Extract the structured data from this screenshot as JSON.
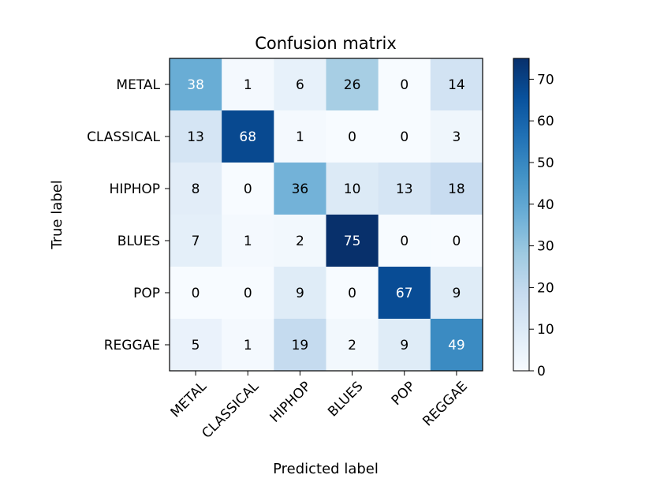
{
  "chart_data": {
    "type": "heatmap",
    "title": "Confusion matrix",
    "xlabel": "Predicted label",
    "ylabel": "True label",
    "x_categories": [
      "METAL",
      "CLASSICAL",
      "HIPHOP",
      "BLUES",
      "POP",
      "REGGAE"
    ],
    "y_categories": [
      "METAL",
      "CLASSICAL",
      "HIPHOP",
      "BLUES",
      "POP",
      "REGGAE"
    ],
    "values": [
      [
        38,
        1,
        6,
        26,
        0,
        14
      ],
      [
        13,
        68,
        1,
        0,
        0,
        3
      ],
      [
        8,
        0,
        36,
        10,
        13,
        18
      ],
      [
        7,
        1,
        2,
        75,
        0,
        0
      ],
      [
        0,
        0,
        9,
        0,
        67,
        9
      ],
      [
        5,
        1,
        19,
        2,
        9,
        49
      ]
    ],
    "colormap": "Blues",
    "color_low": "#f7fbff",
    "color_high": "#08306b",
    "colorbar": {
      "range": [
        0,
        75
      ],
      "ticks": [
        0,
        10,
        20,
        30,
        40,
        50,
        60,
        70
      ]
    },
    "text_threshold": 37.5,
    "text_color_light": "#ffffff",
    "text_color_dark": "#000000"
  }
}
